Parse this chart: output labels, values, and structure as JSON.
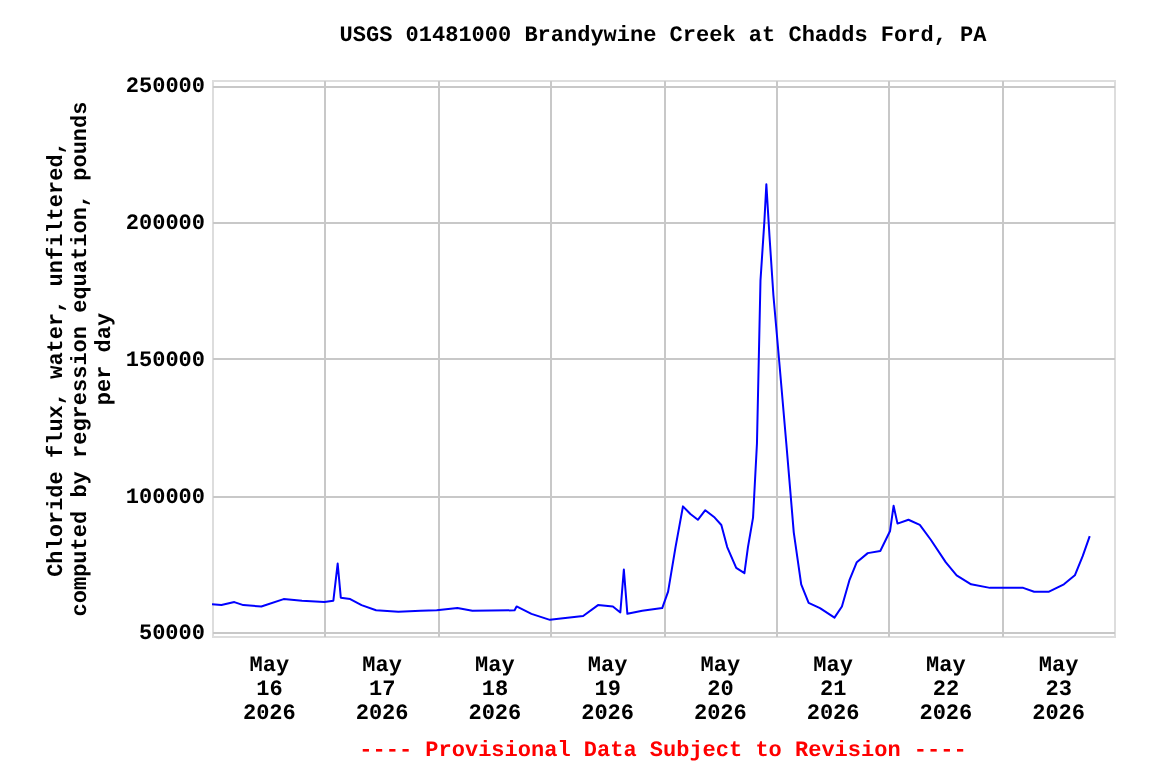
{
  "chart_data": {
    "type": "line",
    "title": "USGS 01481000 Brandywine Creek at Chadds Ford, PA",
    "ylabel": "Chloride flux, water, unfiltered, computed by regression equation, pounds per day",
    "annotations": [
      "---- Provisional Data Subject to Revision ----"
    ],
    "xlim": [
      "2026-05-16T00:00",
      "2026-05-24T00:00"
    ],
    "xticks": [
      {
        "value": "2026-05-16T12:00",
        "label": "May\n16\n2026"
      },
      {
        "value": "2026-05-17T12:00",
        "label": "May\n17\n2026"
      },
      {
        "value": "2026-05-18T12:00",
        "label": "May\n18\n2026"
      },
      {
        "value": "2026-05-19T12:00",
        "label": "May\n19\n2026"
      },
      {
        "value": "2026-05-20T12:00",
        "label": "May\n20\n2026"
      },
      {
        "value": "2026-05-21T12:00",
        "label": "May\n21\n2026"
      },
      {
        "value": "2026-05-22T12:00",
        "label": "May\n22\n2026"
      },
      {
        "value": "2026-05-23T12:00",
        "label": "May\n23\n2026"
      },
      {
        "value": "2026-05-17T00:00",
        "label": null
      },
      {
        "value": "2026-05-18T00:00",
        "label": null
      },
      {
        "value": "2026-05-19T00:00",
        "label": null
      },
      {
        "value": "2026-05-20T00:00",
        "label": null
      },
      {
        "value": "2026-05-21T00:00",
        "label": null
      },
      {
        "value": "2026-05-22T00:00",
        "label": null
      },
      {
        "value": "2026-05-23T00:00",
        "label": null
      }
    ],
    "ylim": [
      48700,
      252000
    ],
    "yticks": [
      50000,
      100000,
      150000,
      200000,
      250000
    ],
    "grid": true,
    "legend": false,
    "marker": "none",
    "line_style": "solid",
    "x": [
      "2026-05-16T00:00",
      "2026-05-16T02:00",
      "2026-05-16T04:45",
      "2026-05-16T06:40",
      "2026-05-16T10:30",
      "2026-05-16T15:15",
      "2026-05-16T19:10",
      "2026-05-16T23:55",
      "2026-05-17T01:50",
      "2026-05-17T02:45",
      "2026-05-17T03:25",
      "2026-05-17T05:25",
      "2026-05-17T07:50",
      "2026-05-17T10:55",
      "2026-05-17T15:40",
      "2026-05-17T20:25",
      "2026-05-17T23:50",
      "2026-05-18T04:15",
      "2026-05-18T07:25",
      "2026-05-18T16:25",
      "2026-05-18T16:50",
      "2026-05-18T20:00",
      "2026-05-18T23:55",
      "2026-05-19T02:15",
      "2026-05-19T07:00",
      "2026-05-19T10:10",
      "2026-05-19T13:20",
      "2026-05-19T14:55",
      "2026-05-19T15:40",
      "2026-05-19T16:25",
      "2026-05-19T19:35",
      "2026-05-19T23:50",
      "2026-05-20T01:05",
      "2026-05-20T02:40",
      "2026-05-20T04:15",
      "2026-05-20T05:50",
      "2026-05-20T07:25",
      "2026-05-20T09:00",
      "2026-05-20T11:00",
      "2026-05-20T12:25",
      "2026-05-20T13:40",
      "2026-05-20T15:35",
      "2026-05-20T17:20",
      "2026-05-20T18:05",
      "2026-05-20T19:10",
      "2026-05-20T20:00",
      "2026-05-20T20:45",
      "2026-05-20T21:35",
      "2026-05-20T22:00",
      "2026-05-20T22:40",
      "2026-05-20T23:30",
      "2026-05-21T00:45",
      "2026-05-21T02:15",
      "2026-05-21T03:50",
      "2026-05-21T05:25",
      "2026-05-21T07:00",
      "2026-05-21T09:25",
      "2026-05-21T12:30",
      "2026-05-21T14:05",
      "2026-05-21T15:40",
      "2026-05-21T17:15",
      "2026-05-21T19:35",
      "2026-05-21T22:15",
      "2026-05-22T00:20",
      "2026-05-22T01:05",
      "2026-05-22T01:55",
      "2026-05-22T04:15",
      "2026-05-22T06:40",
      "2026-05-22T09:00",
      "2026-05-22T12:10",
      "2026-05-22T14:30",
      "2026-05-22T17:35",
      "2026-05-22T21:35",
      "2026-05-23T00:40",
      "2026-05-23T04:40",
      "2026-05-23T07:00",
      "2026-05-23T10:10",
      "2026-05-23T13:20",
      "2026-05-23T15:40",
      "2026-05-23T17:20",
      "2026-05-23T18:50"
    ],
    "series": [
      {
        "color": "#0000ff",
        "values": [
          60300,
          60000,
          61100,
          60000,
          59500,
          62200,
          61600,
          61100,
          61600,
          75200,
          62700,
          62200,
          60000,
          58100,
          57600,
          57900,
          58100,
          58900,
          57900,
          58100,
          59500,
          56800,
          54600,
          55100,
          56000,
          60000,
          59500,
          57300,
          73000,
          56800,
          57900,
          58900,
          64900,
          81200,
          96100,
          93300,
          91200,
          94700,
          92000,
          89300,
          81200,
          73600,
          71700,
          81200,
          92000,
          119100,
          178700,
          200400,
          213900,
          194900,
          173300,
          148900,
          119100,
          86600,
          67600,
          60800,
          58900,
          55400,
          59500,
          69000,
          75700,
          79000,
          79800,
          87100,
          96300,
          89800,
          91200,
          89300,
          83900,
          75700,
          70900,
          67600,
          66300,
          66300,
          66300,
          64900,
          64900,
          67600,
          70900,
          77900,
          85200
        ]
      }
    ]
  }
}
